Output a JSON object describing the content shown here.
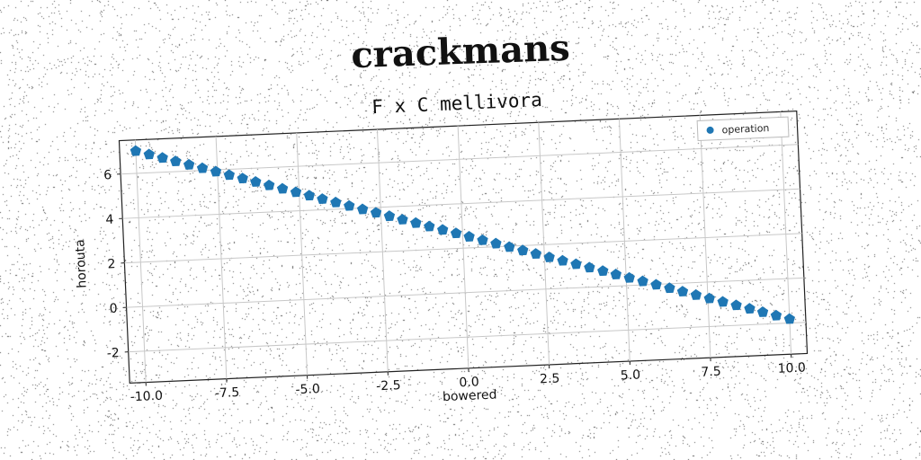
{
  "page": {
    "title": "crackmans"
  },
  "chart_data": {
    "type": "scatter",
    "title": "F x C mellivora",
    "xlabel": "bowered",
    "ylabel": "horouta",
    "xlim": [
      -10.5,
      10.5
    ],
    "ylim": [
      -3.4,
      7.5
    ],
    "xticks": [
      "-10.0",
      "-7.5",
      "-5.0",
      "-2.5",
      "0.0",
      "2.5",
      "5.0",
      "7.5",
      "10.0"
    ],
    "yticks": [
      "-2",
      "0",
      "2",
      "4",
      "6"
    ],
    "grid": true,
    "legend_position": "top-right",
    "marker": "pentagon",
    "color": "#1f77b4",
    "series": [
      {
        "name": "operation",
        "x": [
          -10.0,
          -9.59,
          -9.18,
          -8.78,
          -8.37,
          -7.96,
          -7.55,
          -7.14,
          -6.73,
          -6.33,
          -5.92,
          -5.51,
          -5.1,
          -4.69,
          -4.29,
          -3.88,
          -3.47,
          -3.06,
          -2.65,
          -2.24,
          -1.84,
          -1.43,
          -1.02,
          -0.61,
          -0.2,
          0.2,
          0.61,
          1.02,
          1.43,
          1.84,
          2.24,
          2.65,
          3.06,
          3.47,
          3.88,
          4.29,
          4.69,
          5.1,
          5.51,
          5.92,
          6.33,
          6.73,
          7.14,
          7.55,
          7.96,
          8.37,
          8.78,
          9.18,
          9.59,
          10.0
        ],
        "y": [
          7.0,
          6.82,
          6.64,
          6.46,
          6.28,
          6.1,
          5.92,
          5.74,
          5.56,
          5.38,
          5.2,
          5.02,
          4.84,
          4.66,
          4.48,
          4.3,
          4.12,
          3.94,
          3.76,
          3.58,
          3.4,
          3.22,
          3.04,
          2.86,
          2.68,
          2.5,
          2.32,
          2.14,
          1.96,
          1.78,
          1.6,
          1.42,
          1.24,
          1.06,
          0.88,
          0.7,
          0.52,
          0.34,
          0.16,
          -0.02,
          -0.2,
          -0.38,
          -0.56,
          -0.74,
          -0.92,
          -1.1,
          -1.28,
          -1.46,
          -1.64,
          -1.82
        ]
      }
    ]
  }
}
